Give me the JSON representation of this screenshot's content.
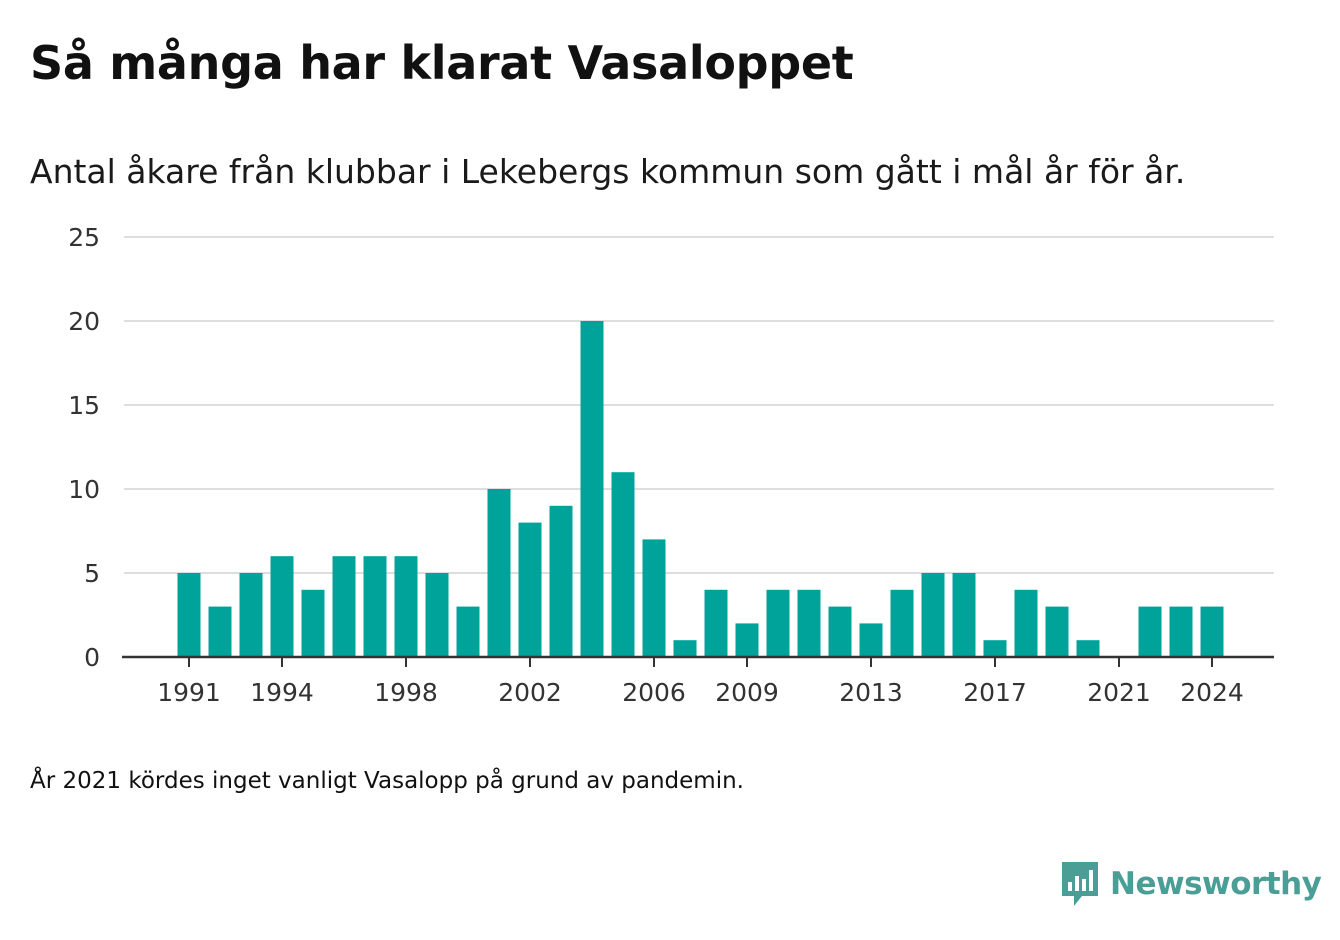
{
  "title": "Så många har klarat Vasaloppet",
  "subtitle": "Antal åkare från klubbar i Lekebergs kommun som gått i mål år för år.",
  "footnote": "År 2021 kördes inget vanligt Vasalopp på grund av pandemin.",
  "brand": {
    "name": "Newsworthy",
    "icon": "newsworthy-logo-icon",
    "color": "#4a9e96"
  },
  "chart_data": {
    "type": "bar",
    "x": [
      1991,
      1992,
      1993,
      1994,
      1995,
      1996,
      1997,
      1998,
      1999,
      2000,
      2001,
      2002,
      2003,
      2004,
      2005,
      2006,
      2007,
      2008,
      2009,
      2010,
      2011,
      2012,
      2013,
      2014,
      2015,
      2016,
      2017,
      2018,
      2019,
      2020,
      2022,
      2023,
      2024
    ],
    "values": [
      5,
      3,
      5,
      6,
      4,
      6,
      6,
      6,
      5,
      3,
      10,
      8,
      9,
      20,
      11,
      7,
      1,
      4,
      2,
      4,
      4,
      3,
      2,
      4,
      5,
      5,
      1,
      4,
      3,
      1,
      3,
      3,
      3
    ],
    "x_ticks": [
      "1991",
      "1994",
      "1998",
      "2002",
      "2006",
      "2009",
      "2013",
      "2017",
      "2021",
      "2024"
    ],
    "y_ticks": [
      "0",
      "5",
      "10",
      "15",
      "20",
      "25"
    ],
    "ylim": [
      0,
      25
    ],
    "xlabel": "",
    "ylabel": "",
    "bar_color": "#00a39a",
    "grid": true
  }
}
